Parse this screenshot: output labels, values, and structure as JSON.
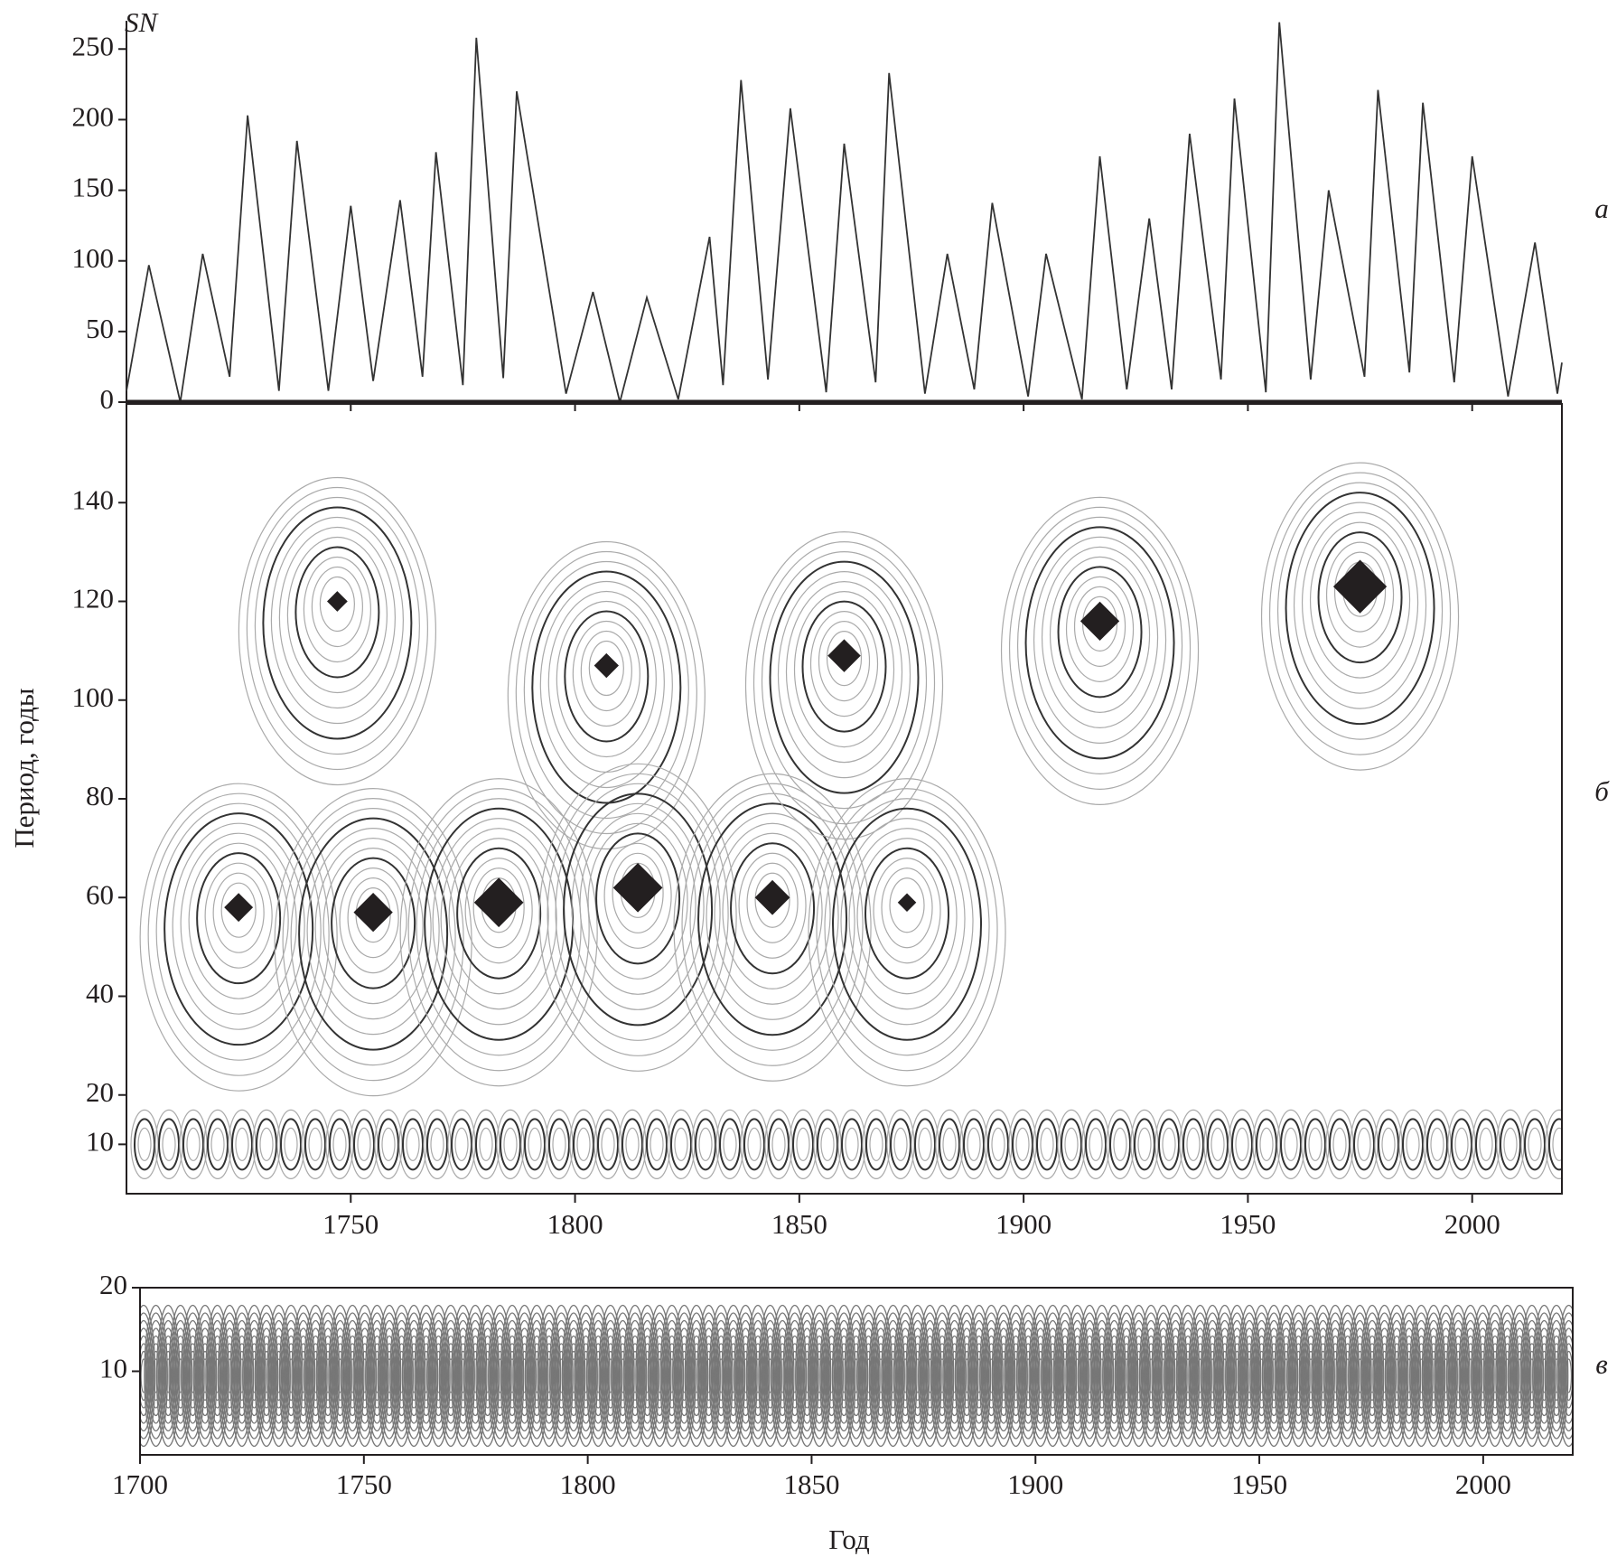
{
  "chart_data": [
    {
      "type": "line",
      "y_label": "SN",
      "panel_label": "а",
      "color": "#333333",
      "x": [
        1700,
        1705,
        1712,
        1717,
        1723,
        1727,
        1734,
        1738,
        1745,
        1750,
        1755,
        1761,
        1766,
        1769,
        1775,
        1778,
        1784,
        1787,
        1798,
        1804,
        1810,
        1816,
        1823,
        1830,
        1833,
        1837,
        1843,
        1848,
        1856,
        1860,
        1867,
        1870,
        1878,
        1883,
        1889,
        1893,
        1901,
        1905,
        1913,
        1917,
        1923,
        1928,
        1933,
        1937,
        1944,
        1947,
        1954,
        1957,
        1964,
        1968,
        1976,
        1979,
        1986,
        1989,
        1996,
        2000,
        2008,
        2014,
        2019,
        2020
      ],
      "values": [
        8,
        97,
        0,
        105,
        18,
        203,
        8,
        185,
        8,
        139,
        15,
        143,
        18,
        177,
        12,
        258,
        17,
        220,
        6,
        78,
        0,
        74,
        2,
        117,
        12,
        228,
        16,
        208,
        7,
        183,
        14,
        233,
        6,
        105,
        9,
        141,
        4,
        105,
        2,
        174,
        9,
        130,
        9,
        190,
        16,
        215,
        7,
        269,
        16,
        150,
        18,
        221,
        21,
        212,
        14,
        174,
        4,
        113,
        6,
        28
      ],
      "xlim": [
        1700,
        2020
      ],
      "xticks": [
        1750,
        1800,
        1850,
        1900,
        1950,
        2000
      ],
      "ylim": [
        0,
        270
      ],
      "yticks": [
        0,
        50,
        100,
        150,
        200,
        250
      ]
    },
    {
      "type": "scatter",
      "y_label": "Период, годы",
      "panel_label": "б",
      "marker": "diamond",
      "color": "#231f20",
      "x": [
        1725,
        1747,
        1755,
        1783,
        1807,
        1814,
        1844,
        1860,
        1874,
        1917,
        1975
      ],
      "values": [
        58,
        120,
        57,
        59,
        107,
        62,
        60,
        109,
        59,
        116,
        123
      ],
      "sizes": [
        14,
        10,
        19,
        24,
        12,
        24,
        17,
        16,
        9,
        19,
        26
      ],
      "xlim": [
        1700,
        2020
      ],
      "xticks": [
        1750,
        1800,
        1850,
        1900,
        1950,
        2000
      ],
      "ylim": [
        0,
        160
      ],
      "yticks": [
        10,
        20,
        40,
        60,
        80,
        100,
        120,
        140
      ]
    },
    {
      "type": "contour",
      "x_label": "Год",
      "panel_label": "в",
      "xlim": [
        1700,
        2020
      ],
      "xticks": [
        1700,
        1750,
        1800,
        1850,
        1900,
        1950,
        2000
      ],
      "ylim": [
        0,
        20
      ],
      "yticks": [
        10,
        20
      ]
    }
  ]
}
